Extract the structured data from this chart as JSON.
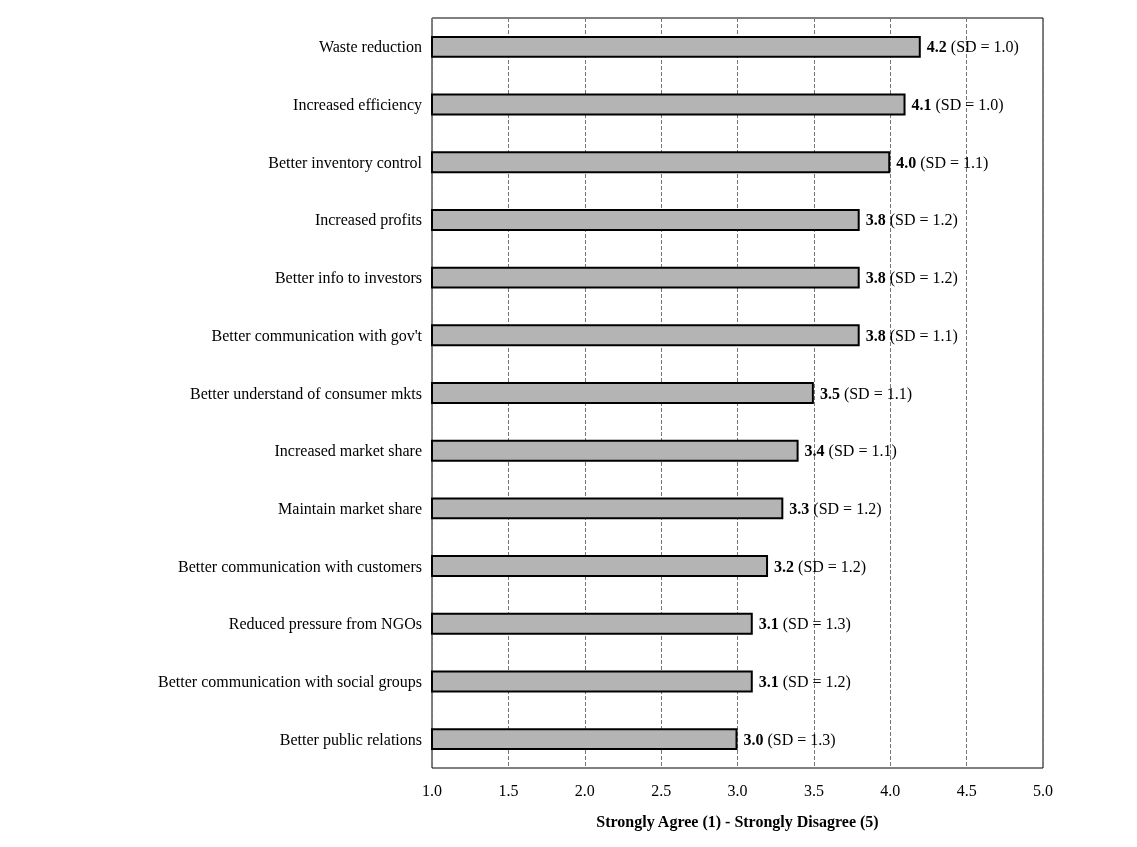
{
  "chart_data": {
    "type": "bar",
    "orientation": "horizontal",
    "xlabel": "Strongly Agree (1) - Strongly Disagree (5)",
    "categories": [
      "Waste reduction",
      "Increased efficiency",
      "Better inventory control",
      "Increased profits",
      "Better info to investors",
      "Better communication with gov't",
      "Better understand of consumer mkts",
      "Increased market share",
      "Maintain market share",
      "Better communication with customers",
      "Reduced pressure from NGOs",
      "Better communication with social groups",
      "Better public relations"
    ],
    "values": [
      4.2,
      4.1,
      4.0,
      3.8,
      3.8,
      3.8,
      3.5,
      3.4,
      3.3,
      3.2,
      3.1,
      3.1,
      3.0
    ],
    "value_labels": [
      "4.2 (SD = 1.0)",
      "4.1 (SD = 1.0)",
      "4.0 (SD = 1.1)",
      "3.8 (SD = 1.2)",
      "3.8 (SD = 1.2)",
      "3.8 (SD = 1.1)",
      "3.5 (SD = 1.1)",
      "3.4 (SD = 1.1)",
      "3.3 (SD = 1.2)",
      "3.2 (SD = 1.2)",
      "3.1 (SD = 1.3)",
      "3.1 (SD = 1.2)",
      "3.0 (SD = 1.3)"
    ],
    "color": "#b4b4b4",
    "xlim": [
      1,
      5
    ],
    "xticks": [
      {
        "value": 1,
        "label": "1.0"
      },
      {
        "value": 1.5,
        "label": "1.5"
      },
      {
        "value": 2,
        "label": "2.0"
      },
      {
        "value": 2.5,
        "label": "2.5"
      },
      {
        "value": 3,
        "label": "3.0"
      },
      {
        "value": 3.5,
        "label": "3.5"
      },
      {
        "value": 4,
        "label": "4.0"
      },
      {
        "value": 4.5,
        "label": "4.5"
      },
      {
        "value": 5,
        "label": "5.0"
      }
    ],
    "grid": "x"
  }
}
